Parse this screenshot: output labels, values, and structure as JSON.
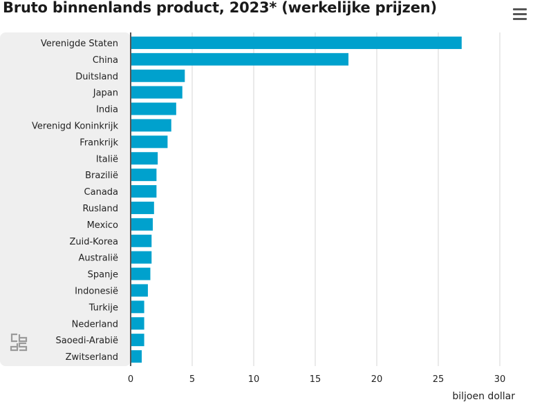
{
  "chart_data": {
    "type": "bar",
    "orientation": "horizontal",
    "title": "Bruto binnenlands product, 2023* (werkelijke prijzen)",
    "categories": [
      "Verenigde Staten",
      "China",
      "Duitsland",
      "Japan",
      "India",
      "Verenigd Koninkrijk",
      "Frankrijk",
      "Italië",
      "Brazilië",
      "Canada",
      "Rusland",
      "Mexico",
      "Zuid-Korea",
      "Australië",
      "Spanje",
      "Indonesië",
      "Turkije",
      "Nederland",
      "Saoedi-Arabië",
      "Zwitserland"
    ],
    "values": [
      26.9,
      17.7,
      4.4,
      4.2,
      3.7,
      3.3,
      3.0,
      2.2,
      2.1,
      2.1,
      1.9,
      1.8,
      1.7,
      1.7,
      1.6,
      1.4,
      1.1,
      1.1,
      1.1,
      0.9
    ],
    "xlabel": "biljoen dollar",
    "ylabel": "",
    "xlim": [
      0,
      30
    ],
    "xticks": [
      0,
      5,
      10,
      15,
      20,
      25,
      30
    ],
    "grid": true,
    "bar_color": "#00a1cd",
    "label_panel_color": "#efefef"
  },
  "logo": {
    "name": "cbs-logo"
  },
  "menu": {
    "icon": "hamburger-menu-icon"
  }
}
